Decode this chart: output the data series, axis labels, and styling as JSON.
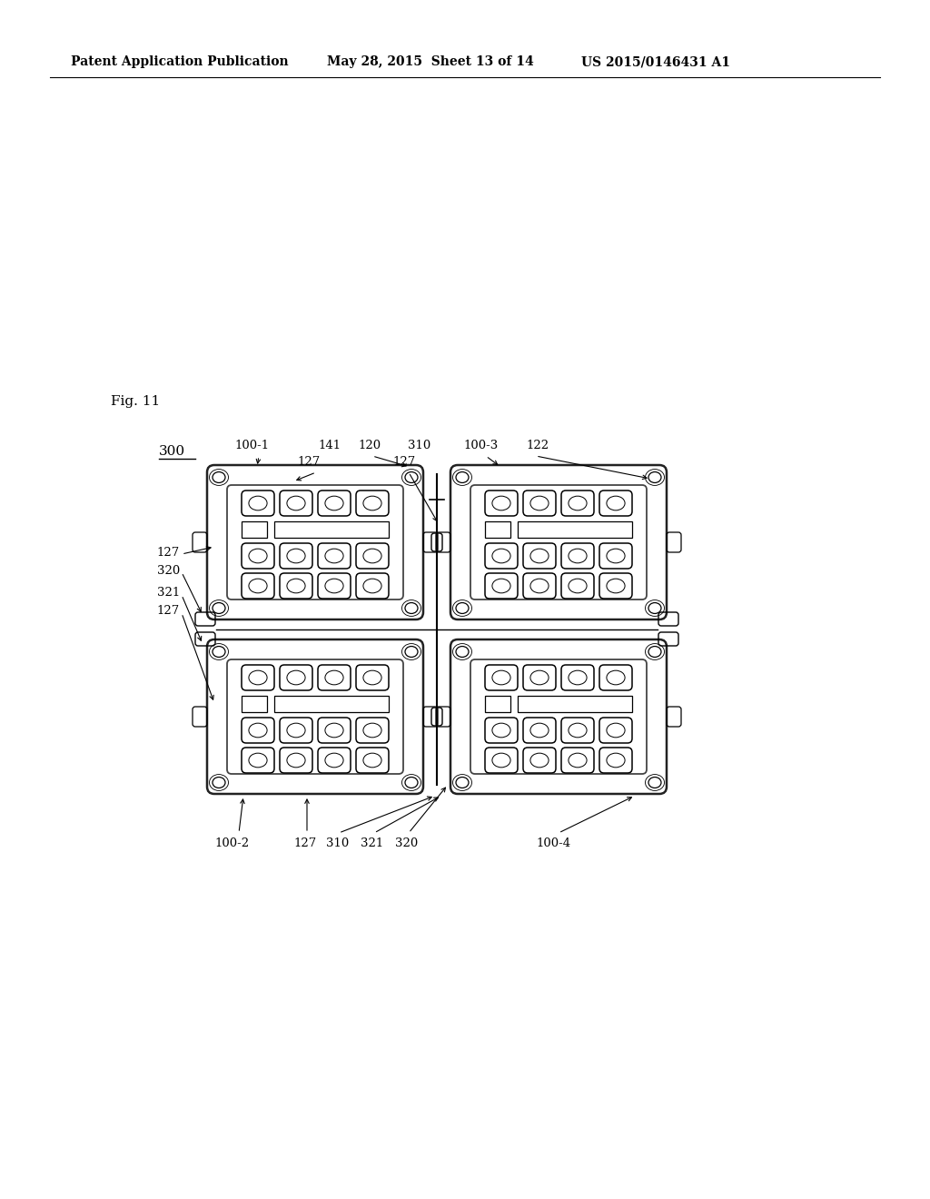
{
  "bg_color": "#ffffff",
  "header_left": "Patent Application Publication",
  "header_mid": "May 28, 2015  Sheet 13 of 14",
  "header_right": "US 2015/0146431 A1",
  "fig_label": "Fig. 11",
  "ref_label": "300"
}
